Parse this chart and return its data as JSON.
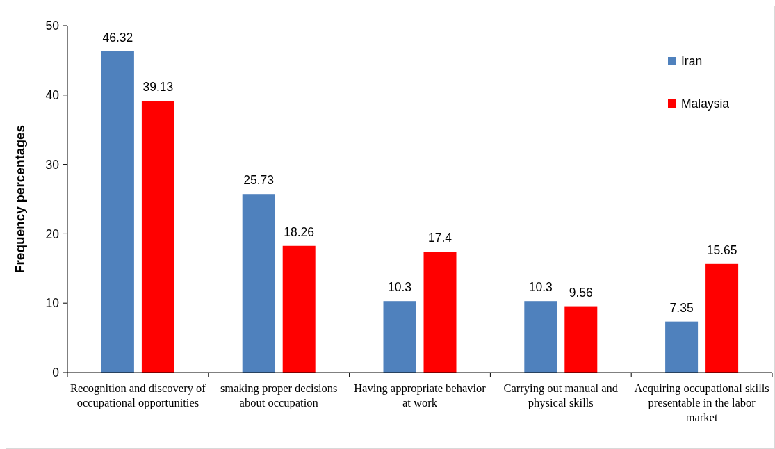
{
  "chart_data": {
    "type": "bar",
    "ylabel": "Frequency percentages",
    "categories": [
      "Recognition and discovery of occupational opportunities",
      "smaking proper decisions about occupation",
      "Having appropriate behavior at work",
      "Carrying out manual and physical skills",
      "Acquiring occupational skills presentable in the labor market"
    ],
    "series": [
      {
        "name": "Iran",
        "color": "#4f81bd",
        "values": [
          46.32,
          25.73,
          10.3,
          10.3,
          7.35
        ]
      },
      {
        "name": "Malaysia",
        "color": "#ff0000",
        "values": [
          39.13,
          18.26,
          17.4,
          9.56,
          15.65
        ]
      }
    ],
    "ylim": [
      0,
      50
    ],
    "yticks": [
      0,
      10,
      20,
      30,
      40,
      50
    ],
    "grid": false,
    "legend": "top right",
    "data_labels": true
  }
}
